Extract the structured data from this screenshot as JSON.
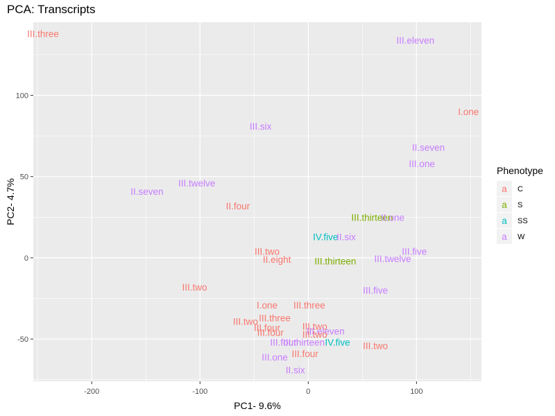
{
  "chart_data": {
    "type": "scatter",
    "title": "PCA: Transcripts",
    "xlabel": "PC1- 9.6%",
    "ylabel": "PC2- 4.7%",
    "xlim": [
      -254,
      160
    ],
    "ylim": [
      -76,
      145
    ],
    "xticks": [
      -200,
      -100,
      0,
      100
    ],
    "yticks": [
      -50,
      0,
      50,
      100
    ],
    "grid": true,
    "legend": {
      "title": "Phenotype",
      "placement": "right",
      "glyph": "a",
      "entries": [
        {
          "name": "C",
          "color": "#F8766D"
        },
        {
          "name": "S",
          "color": "#7CAE00"
        },
        {
          "name": "SS",
          "color": "#00BFC4"
        },
        {
          "name": "W",
          "color": "#C77CFF"
        }
      ]
    },
    "points": [
      {
        "label": "III.three",
        "x": -245,
        "y": 138,
        "group": "C"
      },
      {
        "label": "III.eleven",
        "x": 99,
        "y": 134,
        "group": "W"
      },
      {
        "label": "I.one",
        "x": 148,
        "y": 90,
        "group": "C"
      },
      {
        "label": "III.six",
        "x": -44,
        "y": 81,
        "group": "W"
      },
      {
        "label": "II.seven",
        "x": 111,
        "y": 68,
        "group": "W"
      },
      {
        "label": "III.one",
        "x": 105,
        "y": 58,
        "group": "W"
      },
      {
        "label": "II.seven",
        "x": -149,
        "y": 41,
        "group": "W"
      },
      {
        "label": "III.twelve",
        "x": -103,
        "y": 46,
        "group": "W"
      },
      {
        "label": "II.four",
        "x": -65,
        "y": 32,
        "group": "C"
      },
      {
        "label": "III.thirteen",
        "x": 59,
        "y": 25,
        "group": "S"
      },
      {
        "label": "II.one",
        "x": 78,
        "y": 25,
        "group": "W"
      },
      {
        "label": "IV.five",
        "x": 16,
        "y": 13,
        "group": "SS"
      },
      {
        "label": "II.six",
        "x": 35,
        "y": 13,
        "group": "W"
      },
      {
        "label": "III.two",
        "x": -38,
        "y": 4,
        "group": "C"
      },
      {
        "label": "II.eight",
        "x": -29,
        "y": -1,
        "group": "C"
      },
      {
        "label": "III.thirteen",
        "x": 25,
        "y": -2,
        "group": "S"
      },
      {
        "label": "III.twelve",
        "x": 78,
        "y": -0.5,
        "group": "W"
      },
      {
        "label": "III.five",
        "x": 98,
        "y": 4,
        "group": "W"
      },
      {
        "label": "III.two",
        "x": -105,
        "y": -18,
        "group": "C"
      },
      {
        "label": "III.five",
        "x": 62,
        "y": -20,
        "group": "W"
      },
      {
        "label": "I.one",
        "x": -38,
        "y": -29,
        "group": "C"
      },
      {
        "label": "III.three",
        "x": 1,
        "y": -29,
        "group": "C"
      },
      {
        "label": "III.three",
        "x": -31,
        "y": -37,
        "group": "C"
      },
      {
        "label": "III.two",
        "x": -58,
        "y": -39,
        "group": "C"
      },
      {
        "label": "III.four",
        "x": -38,
        "y": -43,
        "group": "C"
      },
      {
        "label": "III.two",
        "x": 6,
        "y": -42,
        "group": "C"
      },
      {
        "label": "III.eleven",
        "x": 16,
        "y": -45,
        "group": "W"
      },
      {
        "label": "III.four",
        "x": -35,
        "y": -46,
        "group": "C"
      },
      {
        "label": "III.two",
        "x": 6,
        "y": -47,
        "group": "C"
      },
      {
        "label": "III.four",
        "x": -23,
        "y": -52,
        "group": "W"
      },
      {
        "label": "III.thirteen",
        "x": -4,
        "y": -52,
        "group": "W"
      },
      {
        "label": "IV.five",
        "x": 27,
        "y": -52,
        "group": "SS"
      },
      {
        "label": "III.two",
        "x": 62,
        "y": -54,
        "group": "C"
      },
      {
        "label": "III.four",
        "x": -3,
        "y": -59,
        "group": "C"
      },
      {
        "label": "III.one",
        "x": -31,
        "y": -61,
        "group": "W"
      },
      {
        "label": "II.six",
        "x": -12,
        "y": -69,
        "group": "W"
      }
    ]
  }
}
